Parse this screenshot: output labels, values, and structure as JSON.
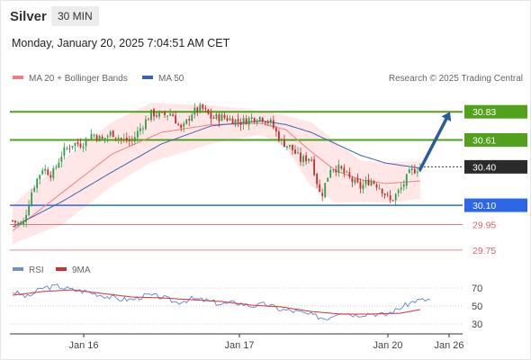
{
  "header": {
    "symbol": "Silver",
    "timeframe": "30 MIN",
    "datetime": "Monday, January 20, 2025 7:04:51 AM CET"
  },
  "colors": {
    "up": "#2f9e44",
    "down": "#c92a2a",
    "bollinger_band": "#ffe3e3",
    "ma20": "#f08080",
    "ma50": "#3a64b0",
    "resistance": "#52a11d",
    "support": "#2b67e8",
    "secondary_support": "#e06666",
    "pivot": "#2b2b2b",
    "arrow": "#2c5a9e",
    "rsi": "#6f8ed6",
    "rsi_ma": "#d32f2f"
  },
  "chart_data": [
    {
      "type": "candlestick",
      "legend": [
        {
          "label": "MA 20 + Bollinger Bands",
          "color": "#f08080"
        },
        {
          "label": "MA 50",
          "color": "#3a64b0"
        }
      ],
      "watermark": "Research © 2025 Trading Central",
      "x_ticks": [
        "Jan 16",
        "Jan 17",
        "Jan 20",
        "Jan 26"
      ],
      "ylim": [
        29.7,
        31.0
      ],
      "levels": [
        {
          "label": "30.83",
          "value": 30.83,
          "kind": "resistance"
        },
        {
          "label": "30.61",
          "value": 30.61,
          "kind": "resistance"
        },
        {
          "label": "30.40",
          "value": 30.4,
          "kind": "pivot"
        },
        {
          "label": "30.10",
          "value": 30.1,
          "kind": "support"
        },
        {
          "label": "29.95",
          "value": 29.95,
          "kind": "secondary_support"
        },
        {
          "label": "29.75",
          "value": 29.75,
          "kind": "secondary_support"
        }
      ],
      "close_path": [
        [
          0,
          29.98
        ],
        [
          2,
          29.94
        ],
        [
          4,
          30.23
        ],
        [
          6,
          30.39
        ],
        [
          8,
          30.34
        ],
        [
          10,
          30.51
        ],
        [
          12,
          30.58
        ],
        [
          14,
          30.58
        ],
        [
          16,
          30.66
        ],
        [
          18,
          30.61
        ],
        [
          20,
          30.67
        ],
        [
          22,
          30.61
        ],
        [
          24,
          30.6
        ],
        [
          26,
          30.72
        ],
        [
          28,
          30.82
        ],
        [
          30,
          30.8
        ],
        [
          32,
          30.82
        ],
        [
          34,
          30.68
        ],
        [
          36,
          30.82
        ],
        [
          38,
          30.86
        ],
        [
          40,
          30.78
        ],
        [
          42,
          30.79
        ],
        [
          44,
          30.77
        ],
        [
          46,
          30.75
        ],
        [
          48,
          30.78
        ],
        [
          50,
          30.79
        ],
        [
          52,
          30.74
        ],
        [
          54,
          30.6
        ],
        [
          56,
          30.55
        ],
        [
          58,
          30.45
        ],
        [
          60,
          30.48
        ],
        [
          62,
          30.16
        ],
        [
          64,
          30.4
        ],
        [
          66,
          30.38
        ],
        [
          68,
          30.3
        ],
        [
          70,
          30.24
        ],
        [
          72,
          30.3
        ],
        [
          74,
          30.24
        ],
        [
          76,
          30.13
        ],
        [
          78,
          30.22
        ],
        [
          80,
          30.36
        ],
        [
          82,
          30.4
        ]
      ],
      "ma20_path": [
        [
          0,
          29.9
        ],
        [
          10,
          30.2
        ],
        [
          20,
          30.5
        ],
        [
          30,
          30.67
        ],
        [
          40,
          30.73
        ],
        [
          50,
          30.74
        ],
        [
          55,
          30.69
        ],
        [
          60,
          30.52
        ],
        [
          65,
          30.37
        ],
        [
          70,
          30.3
        ],
        [
          75,
          30.27
        ],
        [
          82,
          30.29
        ]
      ],
      "ma50_path": [
        [
          0,
          29.93
        ],
        [
          10,
          30.13
        ],
        [
          20,
          30.36
        ],
        [
          30,
          30.58
        ],
        [
          40,
          30.72
        ],
        [
          50,
          30.76
        ],
        [
          55,
          30.73
        ],
        [
          60,
          30.67
        ],
        [
          65,
          30.58
        ],
        [
          70,
          30.49
        ],
        [
          75,
          30.43
        ],
        [
          82,
          30.39
        ]
      ],
      "bb_upper": [
        [
          0,
          30.1
        ],
        [
          10,
          30.45
        ],
        [
          20,
          30.75
        ],
        [
          28,
          30.9
        ],
        [
          40,
          30.88
        ],
        [
          50,
          30.84
        ],
        [
          55,
          30.8
        ],
        [
          60,
          30.75
        ],
        [
          65,
          30.6
        ],
        [
          70,
          30.45
        ],
        [
          75,
          30.43
        ],
        [
          82,
          30.45
        ]
      ],
      "bb_lower": [
        [
          0,
          29.8
        ],
        [
          10,
          29.95
        ],
        [
          20,
          30.25
        ],
        [
          28,
          30.44
        ],
        [
          40,
          30.58
        ],
        [
          50,
          30.65
        ],
        [
          55,
          30.55
        ],
        [
          60,
          30.25
        ],
        [
          65,
          30.12
        ],
        [
          70,
          30.13
        ],
        [
          75,
          30.12
        ],
        [
          82,
          30.15
        ]
      ],
      "projection": {
        "from": [
          82,
          30.38
        ],
        "to": [
          88,
          30.83
        ]
      }
    },
    {
      "type": "line",
      "legend": [
        {
          "label": "RSI",
          "color": "#6f8ed6"
        },
        {
          "label": "9MA",
          "color": "#d32f2f"
        }
      ],
      "y_ticks": [
        70,
        50,
        30
      ],
      "ylim": [
        20,
        80
      ],
      "rsi": [
        [
          0,
          66
        ],
        [
          3,
          60
        ],
        [
          6,
          70
        ],
        [
          9,
          72
        ],
        [
          12,
          68
        ],
        [
          15,
          66
        ],
        [
          18,
          62
        ],
        [
          21,
          58
        ],
        [
          24,
          57
        ],
        [
          27,
          62
        ],
        [
          30,
          60
        ],
        [
          33,
          54
        ],
        [
          36,
          58
        ],
        [
          39,
          56
        ],
        [
          42,
          52
        ],
        [
          45,
          54
        ],
        [
          48,
          50
        ],
        [
          51,
          52
        ],
        [
          54,
          46
        ],
        [
          57,
          44
        ],
        [
          60,
          40
        ],
        [
          63,
          36
        ],
        [
          66,
          44
        ],
        [
          69,
          40
        ],
        [
          72,
          42
        ],
        [
          75,
          40
        ],
        [
          78,
          48
        ],
        [
          81,
          56
        ],
        [
          84,
          57
        ]
      ],
      "rsi_ma": [
        [
          0,
          62
        ],
        [
          6,
          66
        ],
        [
          12,
          68
        ],
        [
          18,
          64
        ],
        [
          24,
          60
        ],
        [
          30,
          59
        ],
        [
          36,
          57
        ],
        [
          42,
          55
        ],
        [
          48,
          51
        ],
        [
          54,
          49
        ],
        [
          60,
          44
        ],
        [
          66,
          41
        ],
        [
          72,
          41
        ],
        [
          78,
          42
        ],
        [
          82,
          46
        ]
      ]
    }
  ]
}
